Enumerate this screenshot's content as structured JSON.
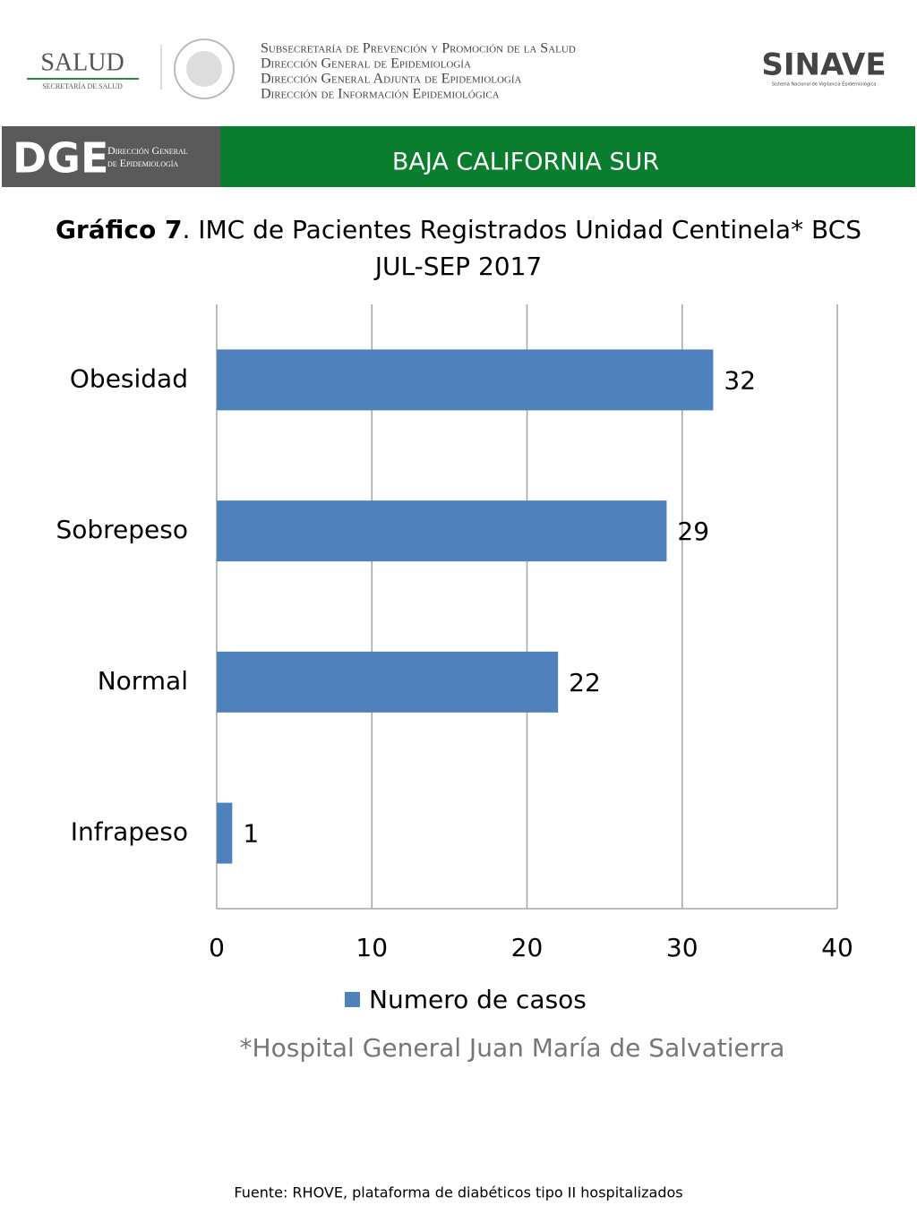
{
  "header": {
    "salud": "SALUD",
    "salud_sub": "SECRETARÍA DE SALUD",
    "lines": [
      "Subsecretaría de Prevención y Promoción de la Salud",
      "Dirección General de Epidemiología",
      "Dirección General Adjunta de Epidemiología",
      "Dirección de Información Epidemiológica"
    ],
    "sinave": "SINAVE",
    "sinave_sub": "Sistema Nacional de Vigilancia Epidemiológica",
    "dge": "DGE",
    "dge_lines": [
      "Dirección General",
      "de Epidemiología"
    ],
    "region": "BAJA CALIFORNIA SUR"
  },
  "chart_data": {
    "type": "hbar",
    "title_bold": "Gráfico 7",
    "title": ". IMC de Pacientes Registrados Unidad Centinela* BCS",
    "subtitle": "JUL-SEP 2017",
    "categories": [
      "Obesidad",
      "Sobrepeso",
      "Normal",
      "Infrapeso"
    ],
    "series": [
      {
        "name": "Numero de casos",
        "color": "#4f81bd",
        "values": [
          32,
          29,
          22,
          1
        ]
      }
    ],
    "xlim": [
      0,
      40
    ],
    "xticks": [
      0,
      10,
      20,
      30,
      40
    ],
    "grid": true,
    "legend": "bottom"
  },
  "footer": {
    "note": "*Hospital General Juan María de Salvatierra",
    "source": "Fuente: RHOVE, plataforma de diabéticos tipo II hospitalizados"
  }
}
